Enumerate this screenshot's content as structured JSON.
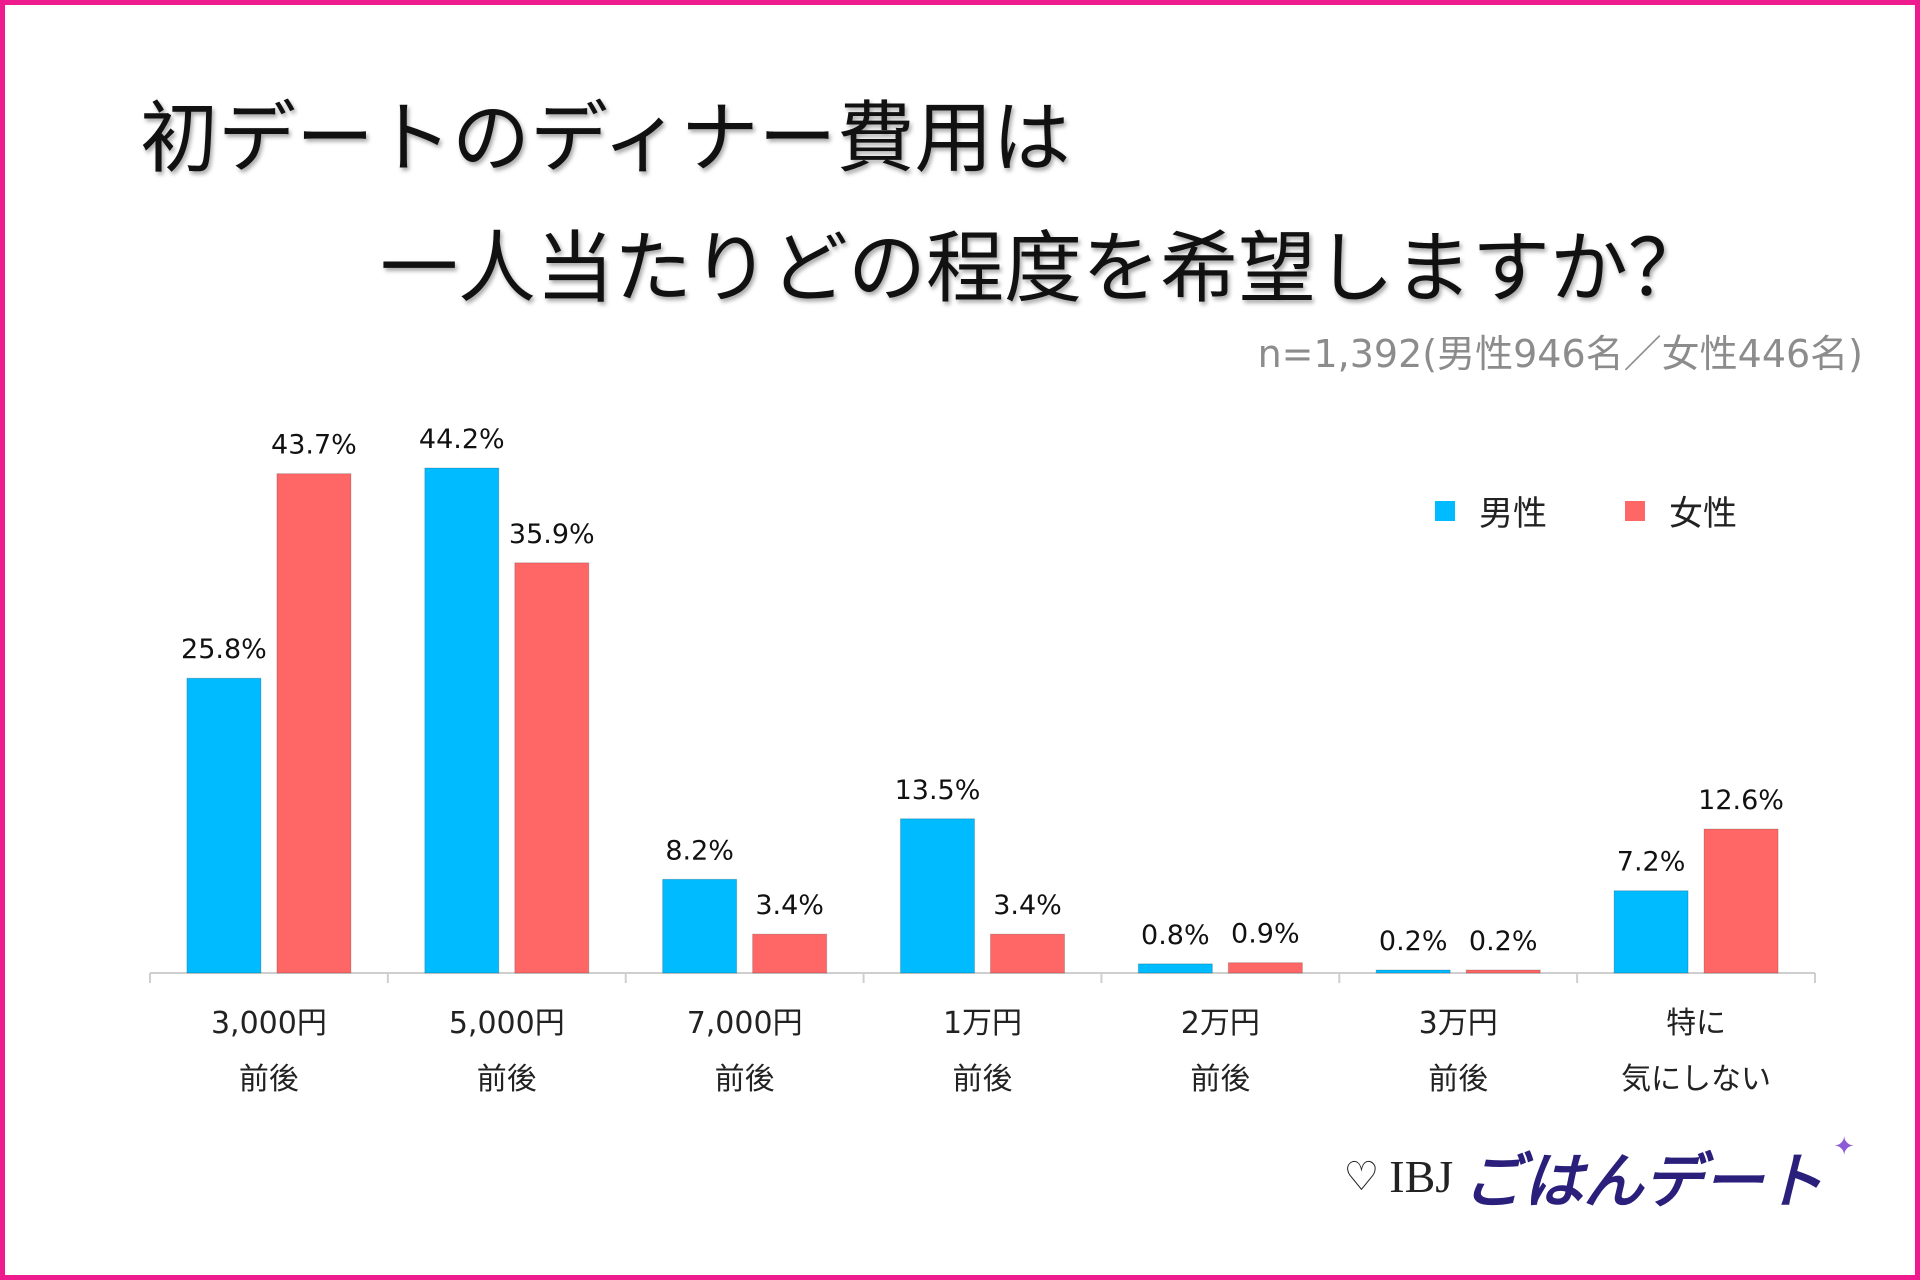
{
  "title": {
    "line1": "初デートのディナー費用は",
    "line2": "一人当たりどの程度を希望しますか？"
  },
  "sample_note": "n=1,392(男性946名／女性446名)",
  "colors": {
    "male": "#00bbff",
    "female": "#ff6766",
    "frame": "#ee1b8e"
  },
  "chart_data": {
    "type": "bar",
    "title": "初デートのディナー費用は一人当たりどの程度を希望しますか？",
    "categories": [
      [
        "3,000円",
        "前後"
      ],
      [
        "5,000円",
        "前後"
      ],
      [
        "7,000円",
        "前後"
      ],
      [
        "1万円",
        "前後"
      ],
      [
        "2万円",
        "前後"
      ],
      [
        "3万円",
        "前後"
      ],
      [
        "特に",
        "気にしない"
      ]
    ],
    "series": [
      {
        "name": "男性",
        "color": "#00bbff",
        "values": [
          25.8,
          44.2,
          8.2,
          13.5,
          0.8,
          0.2,
          7.2
        ]
      },
      {
        "name": "女性",
        "color": "#ff6766",
        "values": [
          43.7,
          35.9,
          3.4,
          3.4,
          0.9,
          0.2,
          12.6
        ]
      }
    ],
    "value_suffix": "%",
    "ylim": [
      0,
      44.2
    ],
    "grid": false,
    "legend": "top-right",
    "xlabel": "",
    "ylabel": ""
  },
  "brand": {
    "heart": "♡",
    "org": "IBJ",
    "service": "ごはんデート",
    "sparkle": "✦"
  }
}
